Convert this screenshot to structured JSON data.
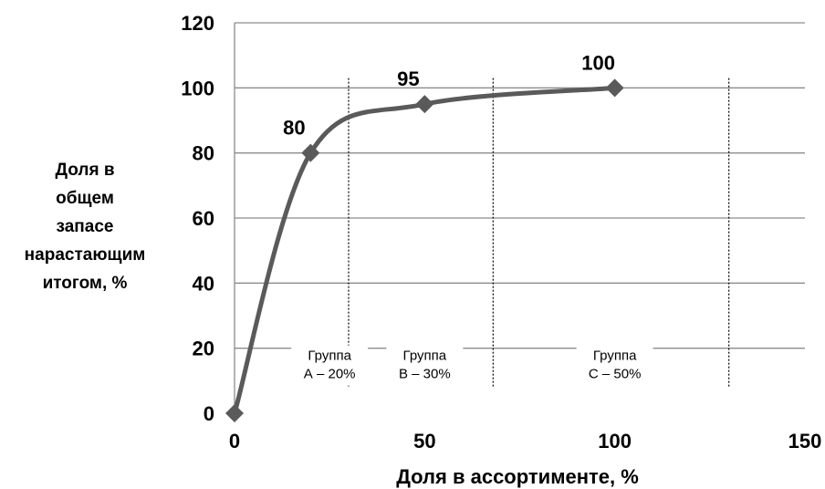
{
  "chart_data": {
    "type": "line",
    "xlabel": "Доля в ассортименте, %",
    "ylabel": [
      "Доля в",
      "общем",
      "запасе",
      "нарастающим",
      "итогом, %"
    ],
    "xlim": [
      0,
      150
    ],
    "ylim": [
      0,
      120
    ],
    "x_ticks": [
      0,
      50,
      100,
      150
    ],
    "y_ticks": [
      0,
      20,
      40,
      60,
      80,
      100,
      120
    ],
    "grid": "horizontal",
    "series": [
      {
        "x": [
          0,
          20,
          50,
          100
        ],
        "y": [
          0,
          80,
          95,
          100
        ],
        "data_labels": [
          "",
          "80",
          "95",
          "100"
        ],
        "color": "#5a5a5a"
      }
    ],
    "separators_x": [
      30,
      68,
      130
    ],
    "groups": [
      {
        "lines": [
          "Группа",
          "А – 20%"
        ],
        "x_center": 25
      },
      {
        "lines": [
          "Группа",
          "В – 30%"
        ],
        "x_center": 50
      },
      {
        "lines": [
          "Группа",
          "С – 50%"
        ],
        "x_center": 100
      }
    ]
  }
}
